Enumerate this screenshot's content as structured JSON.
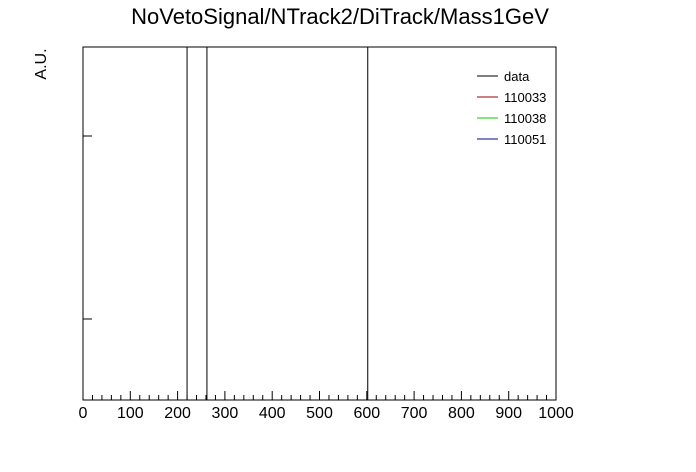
{
  "chart_data": {
    "type": "histogram",
    "title": "NoVetoSignal/NTrack2/DiTrack/Mass1GeV",
    "xlabel": "",
    "ylabel": "A.U.",
    "xlim": [
      0,
      1000
    ],
    "x_ticks": [
      "0",
      "100",
      "200",
      "300",
      "400",
      "500",
      "600",
      "700",
      "800",
      "900",
      "1000"
    ],
    "grid": false,
    "legend_position": "top-right",
    "series": [
      {
        "name": "data",
        "color": "#000000",
        "spikes": [
          220,
          262,
          602
        ]
      },
      {
        "name": "110033",
        "color": "#990000",
        "spikes": []
      },
      {
        "name": "110038",
        "color": "#00cc00",
        "spikes": []
      },
      {
        "name": "110051",
        "color": "#000099",
        "spikes": []
      }
    ]
  }
}
